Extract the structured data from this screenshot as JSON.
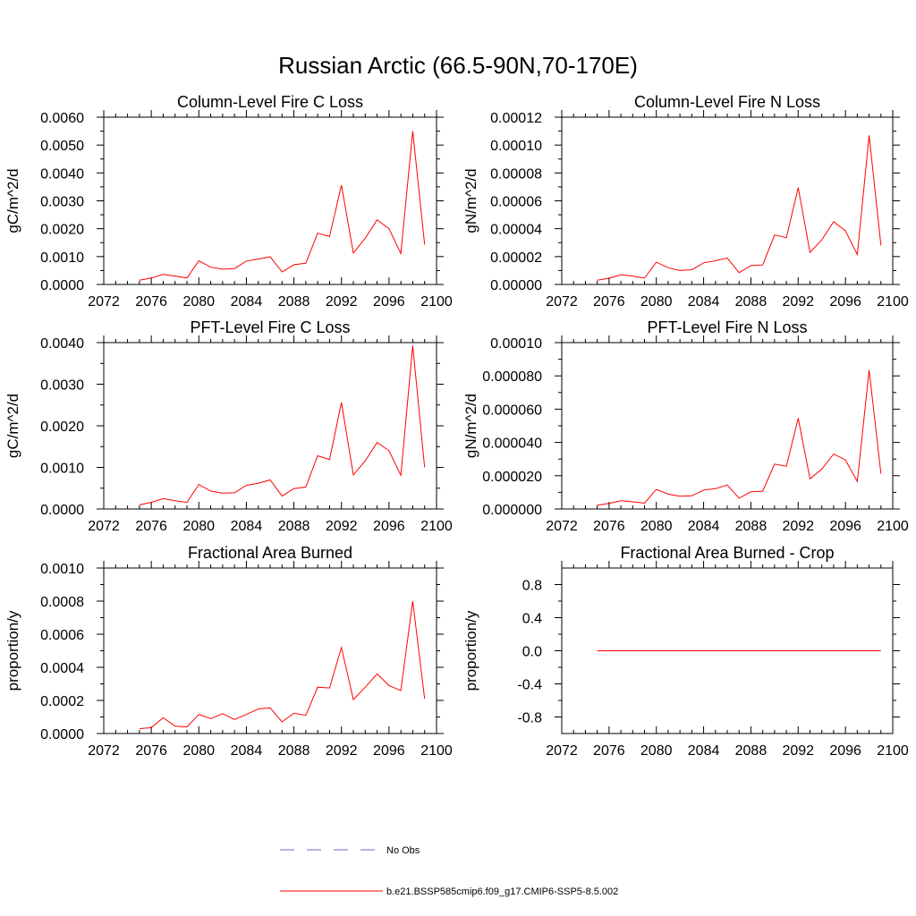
{
  "figure": {
    "title": "Russian Arctic (66.5-90N,70-170E)"
  },
  "colors": {
    "model_line": "#ff0000",
    "obs_line": "#6a6acd",
    "axis": "#000000"
  },
  "legend": {
    "obs_label": "No Obs",
    "model_label": "b.e21.BSSP585cmip6.f09_g17.CMIP6-SSP5-8.5.002"
  },
  "chart_data": [
    {
      "type": "line",
      "title": "Column-Level Fire C Loss",
      "ylabel": "gC/m^2/d",
      "xlim": [
        2072,
        2100
      ],
      "ylim": [
        0,
        0.006
      ],
      "xticks": [
        2072,
        2076,
        2080,
        2084,
        2088,
        2092,
        2096,
        2100
      ],
      "xtick_labels": [
        "2072",
        "2076",
        "2080",
        "2084",
        "2088",
        "2092",
        "2096",
        "2100"
      ],
      "yticks": [
        0,
        0.001,
        0.002,
        0.003,
        0.004,
        0.005,
        0.006
      ],
      "ytick_labels": [
        "0.0000",
        "0.0010",
        "0.0020",
        "0.0030",
        "0.0040",
        "0.0050",
        "0.0060"
      ],
      "x": [
        2075,
        2076,
        2077,
        2078,
        2079,
        2080,
        2081,
        2082,
        2083,
        2084,
        2085,
        2086,
        2087,
        2088,
        2089,
        2090,
        2091,
        2092,
        2093,
        2094,
        2095,
        2096,
        2097,
        2098,
        2099
      ],
      "series": [
        {
          "name": "b.e21.BSSP585cmip6.f09_g17.CMIP6-SSP5-8.5.002",
          "values": [
            0.00015,
            0.00023,
            0.00036,
            0.0003,
            0.00023,
            0.00085,
            0.00062,
            0.00055,
            0.00057,
            0.00084,
            0.00091,
            0.00099,
            0.00045,
            0.00071,
            0.00076,
            0.00184,
            0.00172,
            0.00356,
            0.00113,
            0.00166,
            0.00232,
            0.002,
            0.00111,
            0.0055,
            0.00143
          ]
        }
      ]
    },
    {
      "type": "line",
      "title": "Column-Level Fire N Loss",
      "ylabel": "gN/m^2/d",
      "xlim": [
        2072,
        2100
      ],
      "ylim": [
        0,
        0.00012
      ],
      "xticks": [
        2072,
        2076,
        2080,
        2084,
        2088,
        2092,
        2096,
        2100
      ],
      "xtick_labels": [
        "2072",
        "2076",
        "2080",
        "2084",
        "2088",
        "2092",
        "2096",
        "2100"
      ],
      "yticks": [
        0,
        2e-05,
        4e-05,
        6e-05,
        8e-05,
        0.0001,
        0.00012
      ],
      "ytick_labels": [
        "0.00000",
        "0.00002",
        "0.00004",
        "0.00006",
        "0.00008",
        "0.00010",
        "0.00012"
      ],
      "x": [
        2075,
        2076,
        2077,
        2078,
        2079,
        2080,
        2081,
        2082,
        2083,
        2084,
        2085,
        2086,
        2087,
        2088,
        2089,
        2090,
        2091,
        2092,
        2093,
        2094,
        2095,
        2096,
        2097,
        2098,
        2099
      ],
      "series": [
        {
          "name": "b.e21.BSSP585cmip6.f09_g17.CMIP6-SSP5-8.5.002",
          "values": [
            3e-06,
            4.5e-06,
            7e-06,
            6e-06,
            4.5e-06,
            1.6e-05,
            1.2e-05,
            1e-05,
            1.05e-05,
            1.55e-05,
            1.7e-05,
            1.9e-05,
            8.5e-06,
            1.35e-05,
            1.4e-05,
            3.55e-05,
            3.35e-05,
            6.95e-05,
            2.3e-05,
            3.2e-05,
            4.5e-05,
            3.85e-05,
            2.15e-05,
            0.000107,
            2.8e-05
          ]
        }
      ]
    },
    {
      "type": "line",
      "title": "PFT-Level Fire C Loss",
      "ylabel": "gC/m^2/d",
      "xlim": [
        2072,
        2100
      ],
      "ylim": [
        0,
        0.004
      ],
      "xticks": [
        2072,
        2076,
        2080,
        2084,
        2088,
        2092,
        2096,
        2100
      ],
      "xtick_labels": [
        "2072",
        "2076",
        "2080",
        "2084",
        "2088",
        "2092",
        "2096",
        "2100"
      ],
      "yticks": [
        0,
        0.001,
        0.002,
        0.003,
        0.004
      ],
      "ytick_labels": [
        "0.0000",
        "0.0010",
        "0.0020",
        "0.0030",
        "0.0040"
      ],
      "x": [
        2075,
        2076,
        2077,
        2078,
        2079,
        2080,
        2081,
        2082,
        2083,
        2084,
        2085,
        2086,
        2087,
        2088,
        2089,
        2090,
        2091,
        2092,
        2093,
        2094,
        2095,
        2096,
        2097,
        2098,
        2099
      ],
      "series": [
        {
          "name": "b.e21.BSSP585cmip6.f09_g17.CMIP6-SSP5-8.5.002",
          "values": [
            0.0001,
            0.00016,
            0.00025,
            0.0002,
            0.00016,
            0.00059,
            0.00043,
            0.00038,
            0.00039,
            0.00057,
            0.00062,
            0.0007,
            0.00031,
            0.00049,
            0.00053,
            0.00128,
            0.00119,
            0.00256,
            0.00082,
            0.00116,
            0.0016,
            0.0014,
            0.00081,
            0.00393,
            0.001
          ]
        }
      ]
    },
    {
      "type": "line",
      "title": "PFT-Level Fire N Loss",
      "ylabel": "gN/m^2/d",
      "xlim": [
        2072,
        2100
      ],
      "ylim": [
        0,
        0.0001
      ],
      "xticks": [
        2072,
        2076,
        2080,
        2084,
        2088,
        2092,
        2096,
        2100
      ],
      "xtick_labels": [
        "2072",
        "2076",
        "2080",
        "2084",
        "2088",
        "2092",
        "2096",
        "2100"
      ],
      "yticks": [
        0,
        2e-05,
        4e-05,
        6e-05,
        8e-05,
        0.0001
      ],
      "ytick_labels": [
        "0.000000",
        "0.000020",
        "0.000040",
        "0.000060",
        "0.000080",
        "0.00010"
      ],
      "x": [
        2075,
        2076,
        2077,
        2078,
        2079,
        2080,
        2081,
        2082,
        2083,
        2084,
        2085,
        2086,
        2087,
        2088,
        2089,
        2090,
        2091,
        2092,
        2093,
        2094,
        2095,
        2096,
        2097,
        2098,
        2099
      ],
      "series": [
        {
          "name": "b.e21.BSSP585cmip6.f09_g17.CMIP6-SSP5-8.5.002",
          "values": [
            2.2e-06,
            3.4e-06,
            5e-06,
            4.3e-06,
            3.5e-06,
            1.18e-05,
            8.9e-06,
            7.7e-06,
            7.9e-06,
            1.14e-05,
            1.22e-05,
            1.44e-05,
            6.5e-06,
            1.03e-05,
            1.07e-05,
            2.7e-05,
            2.57e-05,
            5.45e-05,
            1.81e-05,
            2.4e-05,
            3.3e-05,
            2.95e-05,
            1.65e-05,
            8.35e-05,
            2.12e-05
          ]
        }
      ]
    },
    {
      "type": "line",
      "title": "Fractional Area Burned",
      "ylabel": "proportion/y",
      "xlim": [
        2072,
        2100
      ],
      "ylim": [
        0,
        0.001
      ],
      "xticks": [
        2072,
        2076,
        2080,
        2084,
        2088,
        2092,
        2096,
        2100
      ],
      "xtick_labels": [
        "2072",
        "2076",
        "2080",
        "2084",
        "2088",
        "2092",
        "2096",
        "2100"
      ],
      "yticks": [
        0,
        0.0002,
        0.0004,
        0.0006,
        0.0008,
        0.001
      ],
      "ytick_labels": [
        "0.0000",
        "0.0002",
        "0.0004",
        "0.0006",
        "0.0008",
        "0.0010"
      ],
      "x": [
        2075,
        2076,
        2077,
        2078,
        2079,
        2080,
        2081,
        2082,
        2083,
        2084,
        2085,
        2086,
        2087,
        2088,
        2089,
        2090,
        2091,
        2092,
        2093,
        2094,
        2095,
        2096,
        2097,
        2098,
        2099
      ],
      "series": [
        {
          "name": "b.e21.BSSP585cmip6.f09_g17.CMIP6-SSP5-8.5.002",
          "values": [
            3e-05,
            3.5e-05,
            9.5e-05,
            4.5e-05,
            4e-05,
            0.000115,
            9e-05,
            0.00012,
            8.5e-05,
            0.000115,
            0.000148,
            0.000155,
            7e-05,
            0.000122,
            0.00011,
            0.00028,
            0.000275,
            0.00052,
            0.000205,
            0.00028,
            0.00036,
            0.00029,
            0.00026,
            0.0008,
            0.00021
          ]
        }
      ]
    },
    {
      "type": "line",
      "title": "Fractional Area Burned - Crop",
      "ylabel": "proportion/y",
      "xlim": [
        2072,
        2100
      ],
      "ylim": [
        -1,
        1
      ],
      "xticks": [
        2072,
        2076,
        2080,
        2084,
        2088,
        2092,
        2096,
        2100
      ],
      "xtick_labels": [
        "2072",
        "2076",
        "2080",
        "2084",
        "2088",
        "2092",
        "2096",
        "2100"
      ],
      "yticks": [
        -0.8,
        -0.4,
        0,
        0.4,
        0.8
      ],
      "ytick_labels": [
        "-0.8",
        "-0.4",
        "0.0",
        "0.4",
        "0.8"
      ],
      "x": [
        2075,
        2076,
        2077,
        2078,
        2079,
        2080,
        2081,
        2082,
        2083,
        2084,
        2085,
        2086,
        2087,
        2088,
        2089,
        2090,
        2091,
        2092,
        2093,
        2094,
        2095,
        2096,
        2097,
        2098,
        2099
      ],
      "series": [
        {
          "name": "b.e21.BSSP585cmip6.f09_g17.CMIP6-SSP5-8.5.002",
          "values": [
            0,
            0,
            0,
            0,
            0,
            0,
            0,
            0,
            0,
            0,
            0,
            0,
            0,
            0,
            0,
            0,
            0,
            0,
            0,
            0,
            0,
            0,
            0,
            0,
            0
          ]
        }
      ]
    }
  ]
}
